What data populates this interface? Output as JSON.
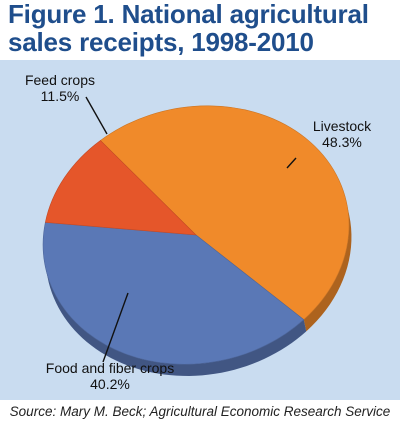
{
  "title_line1": "Figure 1. National agricultural",
  "title_line2": "sales receipts, 1998-2010",
  "source": "Source: Mary M. Beck; Agricultural Economic Research Service",
  "colors": {
    "background": "#c9dcf0",
    "title": "#1f4e8c",
    "livestock": "#f08a2a",
    "food_fiber": "#5a78b6",
    "feed": "#e5562a"
  },
  "chart_data": {
    "type": "pie",
    "title": "Figure 1. National agricultural sales receipts, 1998-2010",
    "slices": [
      {
        "label": "Livestock",
        "value_label": "48.3%",
        "value": 48.3,
        "color": "#f08a2a"
      },
      {
        "label": "Food and fiber crops",
        "value_label": "40.2%",
        "value": 40.2,
        "color": "#5a78b6"
      },
      {
        "label": "Feed crops",
        "value_label": "11.5%",
        "value": 11.5,
        "color": "#e5562a"
      }
    ],
    "legend": "none"
  }
}
